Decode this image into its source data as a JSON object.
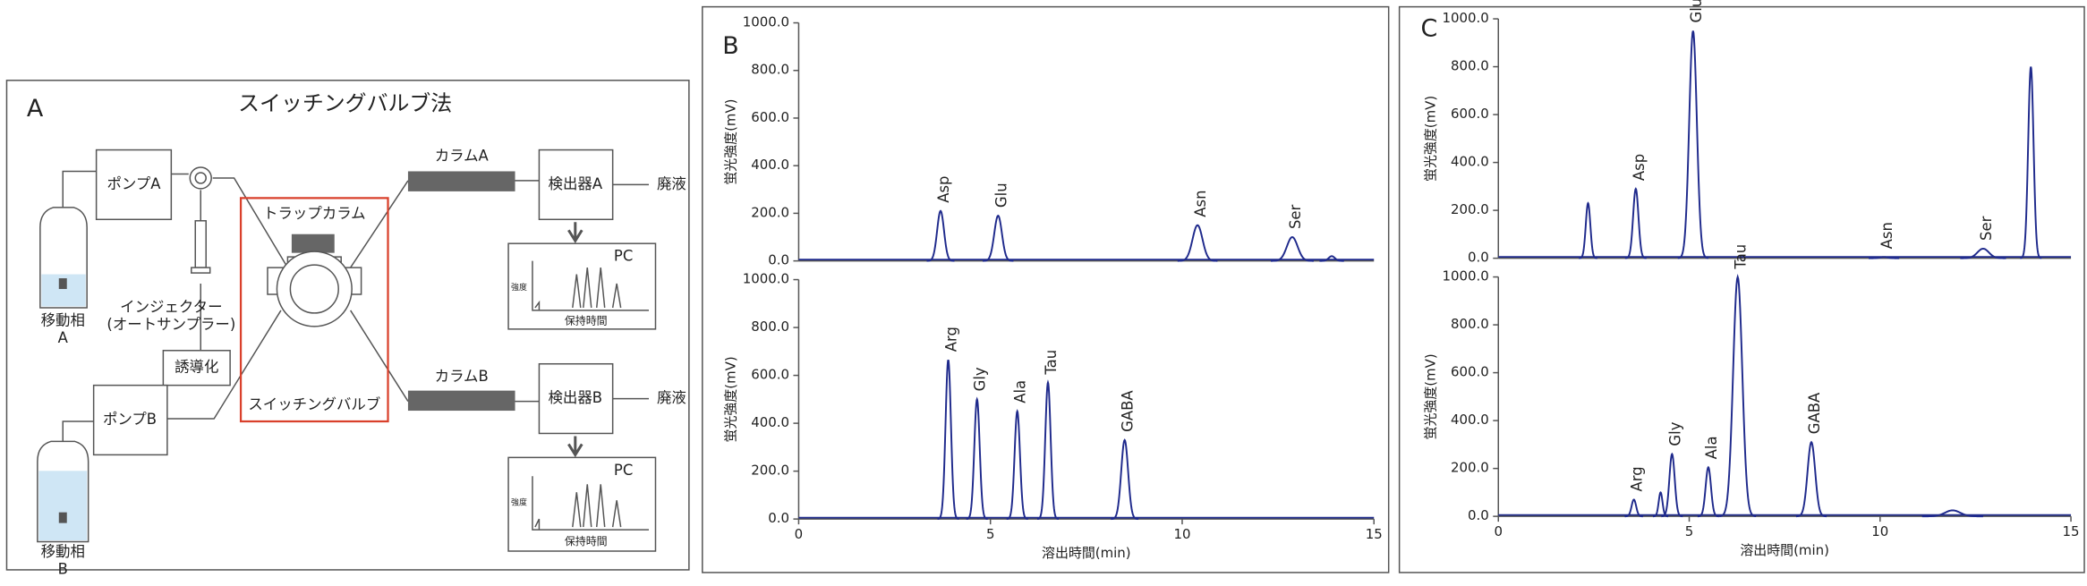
{
  "diagram": {
    "panel": "A",
    "title": "スイッチングバルブ法",
    "nodes": [
      "移動相",
      "A",
      "ポンプA",
      "インジェクター",
      "(オートサンプラー)",
      "誘導化",
      "ポンプB",
      "移動相",
      "B",
      "トラップカラム",
      "スイッチングバルブ",
      "カラムA",
      "検出器A",
      "廃液",
      "PC",
      "強度",
      "保持時間",
      "カラムB",
      "検出器B",
      "廃液",
      "PC",
      "強度",
      "保持時間"
    ]
  },
  "chart_data": [
    {
      "type": "chromatogram",
      "panel": "B",
      "ylabel": "蛍光強度(mV)",
      "color": "#1f2a8c",
      "xlim": [
        0,
        15
      ],
      "ylim": [
        0,
        1000
      ],
      "yticks": [
        {
          "value": 0,
          "label": "0.0"
        },
        {
          "value": 200,
          "label": "200.0"
        },
        {
          "value": 400,
          "label": "400.0"
        },
        {
          "value": 600,
          "label": "600.0"
        },
        {
          "value": 800,
          "label": "800.0"
        },
        {
          "value": 1000,
          "label": "1000.0"
        }
      ],
      "peaks": {
        "labels": [
          "Asp",
          "Glu",
          "Asn",
          "Ser",
          null
        ],
        "x": [
          3.7,
          5.2,
          10.4,
          12.87,
          13.9
        ],
        "values": [
          210,
          190,
          150,
          100,
          20
        ],
        "widths": [
          0.09,
          0.1,
          0.13,
          0.14,
          0.08
        ]
      }
    },
    {
      "type": "chromatogram",
      "ylabel": "蛍光強度(mV)",
      "xlabel": "溶出時間(min)",
      "color": "#1f2a8c",
      "xlim": [
        0,
        15
      ],
      "ylim": [
        0,
        1000
      ],
      "xticks": [
        0,
        5,
        10,
        15
      ],
      "yticks": [
        {
          "value": 0,
          "label": "0.0"
        },
        {
          "value": 200,
          "label": "200.0"
        },
        {
          "value": 400,
          "label": "400.0"
        },
        {
          "value": 600,
          "label": "600.0"
        },
        {
          "value": 800,
          "label": "800.0"
        },
        {
          "value": 1000,
          "label": "1000.0"
        }
      ],
      "peaks": {
        "labels": [
          "Arg",
          "Gly",
          "Ala",
          "Tau",
          "GABA"
        ],
        "x": [
          3.9,
          4.65,
          5.7,
          6.5,
          8.5
        ],
        "values": [
          665,
          500,
          450,
          570,
          330
        ],
        "widths": [
          0.07,
          0.07,
          0.07,
          0.07,
          0.09
        ]
      }
    },
    {
      "type": "chromatogram",
      "panel": "C",
      "ylabel": "蛍光強度(mV)",
      "color": "#1f2a8c",
      "xlim": [
        0,
        15
      ],
      "ylim": [
        0,
        1000
      ],
      "yticks": [
        {
          "value": 0,
          "label": "0.0"
        },
        {
          "value": 200,
          "label": "200.0"
        },
        {
          "value": 400,
          "label": "400.0"
        },
        {
          "value": 600,
          "label": "600.0"
        },
        {
          "value": 800,
          "label": "800.0"
        },
        {
          "value": 1000,
          "label": "1000.0"
        }
      ],
      "peaks": {
        "labels": [
          null,
          "Asp",
          "Glu",
          "Asn",
          "Ser",
          null
        ],
        "x": [
          2.35,
          3.6,
          5.1,
          10.1,
          12.7,
          13.95
        ],
        "values": [
          230,
          290,
          950,
          5,
          40,
          800
        ],
        "widths": [
          0.06,
          0.07,
          0.1,
          0.1,
          0.15,
          0.07
        ]
      }
    },
    {
      "type": "chromatogram",
      "ylabel": "蛍光強度(mV)",
      "xlabel": "溶出時間(min)",
      "color": "#1f2a8c",
      "xlim": [
        0,
        15
      ],
      "ylim": [
        0,
        1000
      ],
      "xticks": [
        0,
        5,
        10,
        15
      ],
      "yticks": [
        {
          "value": 0,
          "label": "0.0"
        },
        {
          "value": 200,
          "label": "200.0"
        },
        {
          "value": 400,
          "label": "400.0"
        },
        {
          "value": 600,
          "label": "600.0"
        },
        {
          "value": 800,
          "label": "800.0"
        },
        {
          "value": 1000,
          "label": "1000.0"
        }
      ],
      "peaks": {
        "labels": [
          "Arg",
          null,
          "Gly",
          "Ala",
          "Tau",
          "GABA",
          null
        ],
        "x": [
          3.55,
          4.25,
          4.55,
          5.5,
          6.27,
          8.2,
          11.9
        ],
        "values": [
          70,
          100,
          260,
          205,
          1000,
          310,
          25
        ],
        "widths": [
          0.06,
          0.05,
          0.07,
          0.07,
          0.12,
          0.1,
          0.2
        ]
      }
    }
  ]
}
